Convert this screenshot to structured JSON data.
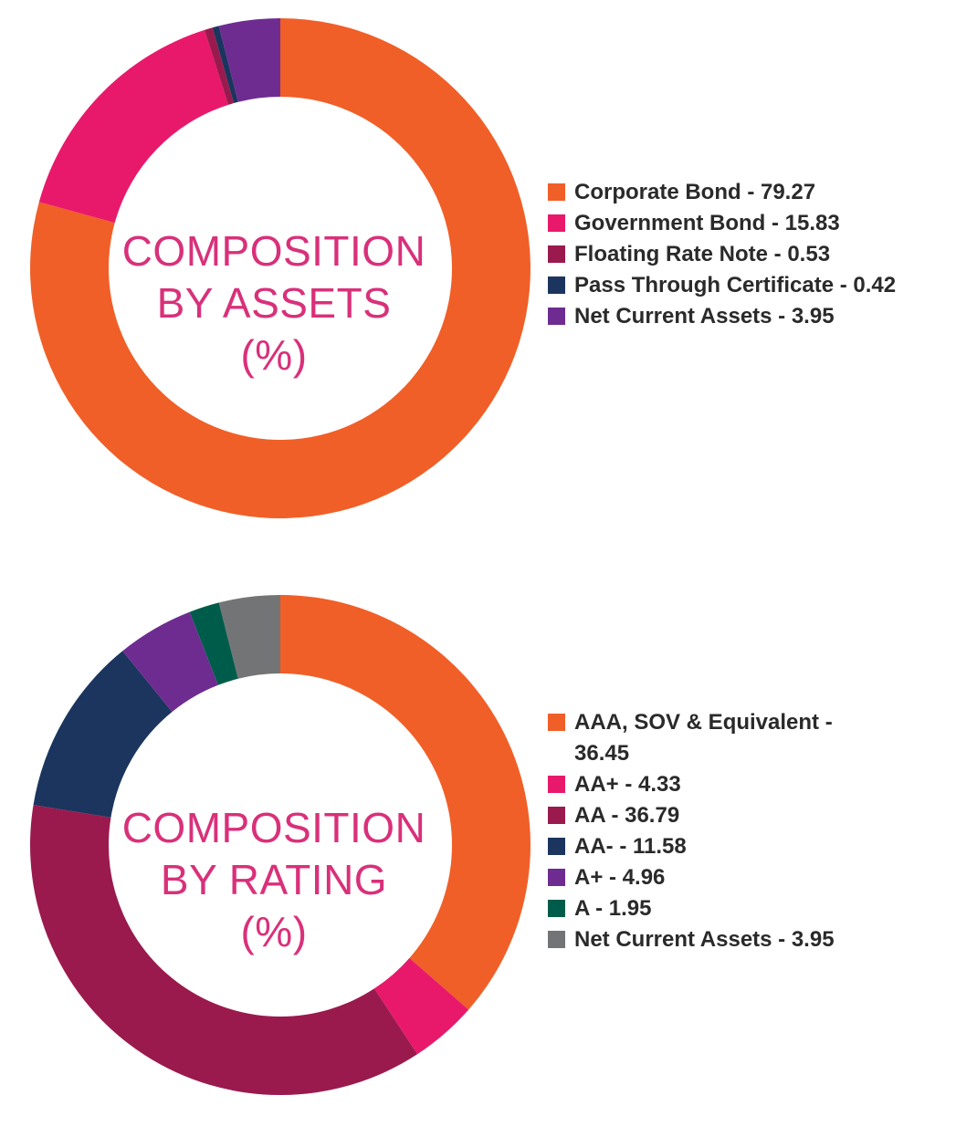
{
  "chart_data": [
    {
      "type": "pie",
      "title_lines": [
        "COMPOSITION",
        "BY ASSETS",
        "(%)"
      ],
      "categories": [
        "Corporate Bond",
        "Government Bond",
        "Floating Rate Note",
        "Pass Through Certificate",
        "Net Current Assets"
      ],
      "values": [
        79.27,
        15.83,
        0.53,
        0.42,
        3.95
      ],
      "colors": [
        "#f05f28",
        "#e8196b",
        "#9a1a4e",
        "#1b355e",
        "#6e2c91"
      ],
      "legend_labels": [
        "Corporate Bond - 79.27",
        "Government Bond - 15.83",
        "Floating Rate Note - 0.53",
        "Pass Through Certificate - 0.42",
        "Net Current Assets - 3.95"
      ],
      "legend_position": "right"
    },
    {
      "type": "pie",
      "title_lines": [
        "COMPOSITION",
        "BY RATING",
        "(%)"
      ],
      "categories": [
        "AAA, SOV & Equivalent",
        "AA+",
        "AA",
        "AA-",
        "A+",
        "A",
        "Net Current Assets"
      ],
      "values": [
        36.45,
        4.33,
        36.79,
        11.58,
        4.96,
        1.95,
        3.95
      ],
      "colors": [
        "#f05f28",
        "#e8196b",
        "#9a1a4e",
        "#1b355e",
        "#6e2c91",
        "#005c4a",
        "#737476"
      ],
      "legend_labels": [
        "AAA, SOV & Equivalent - 36.45",
        "AA+ - 4.33",
        "AA - 36.79",
        "AA- - 11.58",
        "A+ - 4.96",
        "A - 1.95",
        "Net Current Assets - 3.95"
      ],
      "legend_position": "right"
    }
  ]
}
